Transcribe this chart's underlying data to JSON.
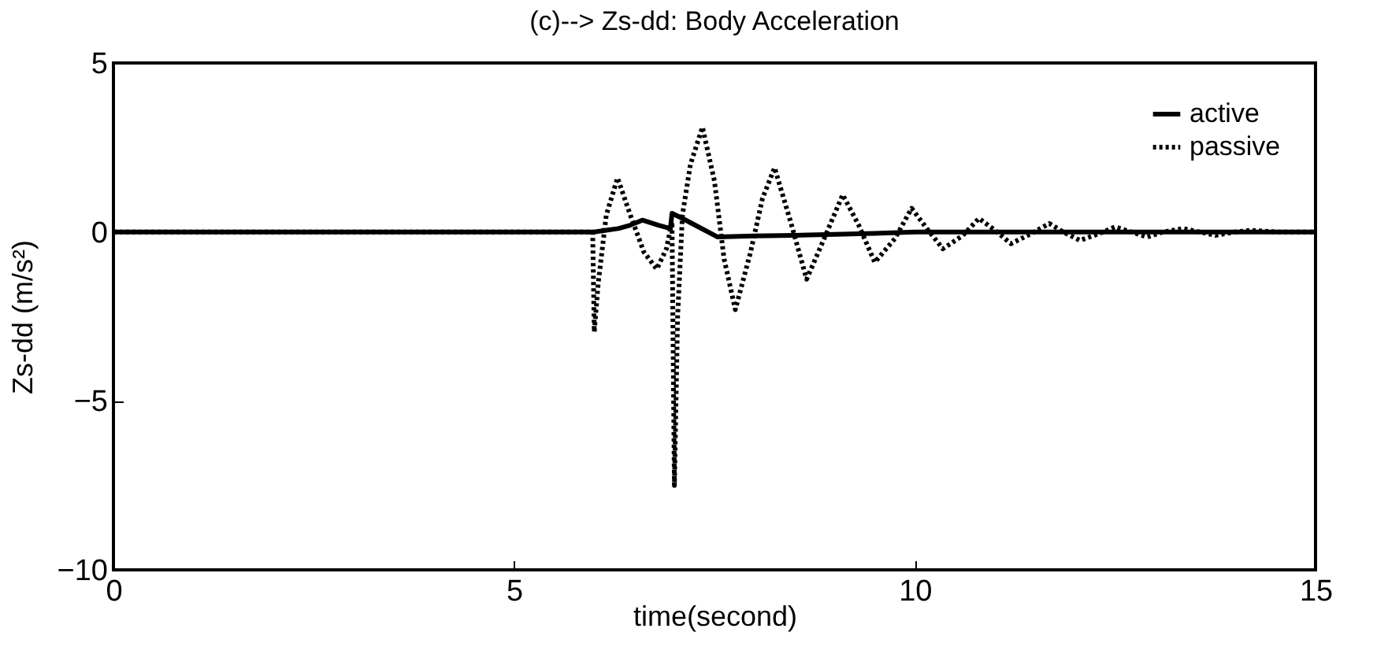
{
  "chart_data": {
    "type": "line",
    "title": "(c)--> Zs-dd: Body Acceleration",
    "xlabel": "time(second)",
    "ylabel": "Zs-dd (m/s²)",
    "xlim": [
      0,
      15
    ],
    "ylim": [
      -10,
      5
    ],
    "xticks": [
      0,
      5,
      10,
      15
    ],
    "yticks": [
      -10,
      -5,
      0,
      5
    ],
    "grid": false,
    "legend": "top right",
    "series": [
      {
        "name": "active",
        "color": "#000000",
        "line_style": "solid",
        "x": [
          0,
          6.0,
          6.15,
          6.3,
          6.45,
          6.6,
          6.8,
          6.95,
          6.97,
          7.1,
          7.3,
          7.54,
          8.0,
          8.5,
          9.0,
          9.5,
          10,
          15
        ],
        "values": [
          0,
          0,
          0.05,
          0.1,
          0.2,
          0.35,
          0.2,
          0.1,
          0.55,
          0.4,
          0.15,
          -0.15,
          -0.12,
          -0.1,
          -0.07,
          -0.04,
          0,
          0
        ]
      },
      {
        "name": "passive",
        "color": "#000000",
        "line_style": "dotted",
        "x": [
          0,
          5.98,
          6.0,
          6.05,
          6.15,
          6.29,
          6.45,
          6.62,
          6.78,
          6.9,
          6.97,
          7.0,
          7.04,
          7.1,
          7.2,
          7.35,
          7.5,
          7.62,
          7.76,
          7.95,
          8.1,
          8.25,
          8.45,
          8.65,
          8.85,
          9.1,
          9.3,
          9.5,
          9.75,
          9.96,
          10.15,
          10.35,
          10.6,
          10.8,
          11.0,
          11.2,
          11.45,
          11.68,
          11.85,
          12.06,
          12.3,
          12.5,
          12.7,
          12.9,
          13.1,
          13.35,
          13.55,
          13.75,
          14.0,
          14.2,
          14.5,
          15
        ],
        "values": [
          0,
          0,
          -2.96,
          -1.5,
          0.5,
          1.6,
          0.5,
          -0.6,
          -1.1,
          -0.5,
          0.3,
          -7.5,
          -2.5,
          0.5,
          2.0,
          3.1,
          1.5,
          -0.8,
          -2.3,
          -0.6,
          1.0,
          1.9,
          0.3,
          -1.4,
          -0.3,
          1.1,
          0.2,
          -0.9,
          -0.2,
          0.7,
          0.1,
          -0.5,
          -0.1,
          0.4,
          0.05,
          -0.35,
          -0.05,
          0.25,
          0.0,
          -0.25,
          -0.05,
          0.15,
          0.0,
          -0.15,
          0.0,
          0.1,
          0.0,
          -0.1,
          0.0,
          0.05,
          0.0,
          0
        ]
      }
    ]
  }
}
